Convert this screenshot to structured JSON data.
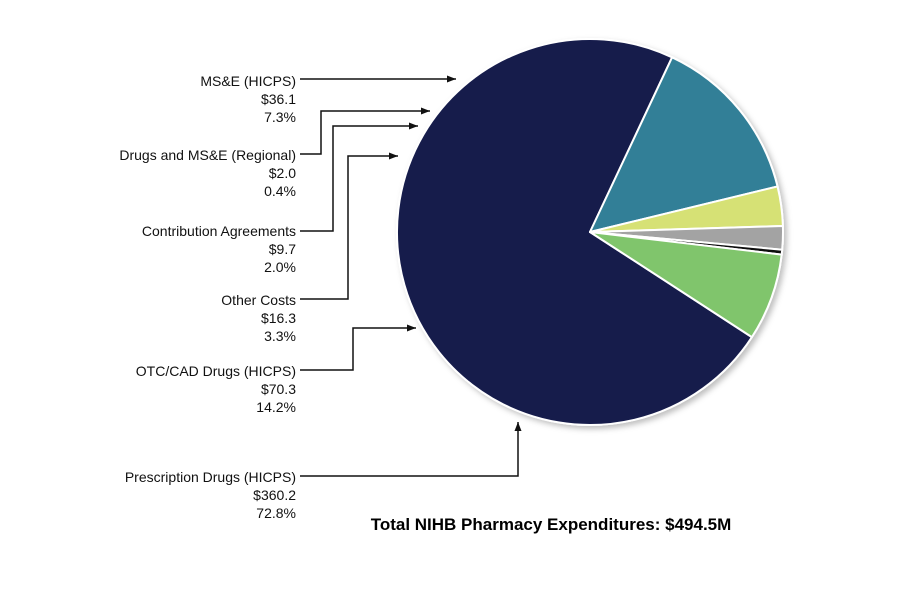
{
  "chart_data": {
    "type": "pie",
    "total_label": "Total NIHB Pharmacy Expenditures: $494.5M",
    "slices": [
      {
        "name": "Prescription Drugs (HICPS)",
        "value_label": "$360.2",
        "percent_label": "72.8%",
        "value": 360.2,
        "percent": 72.8,
        "color": "#141a4c"
      },
      {
        "name": "OTC/CAD Drugs (HICPS)",
        "value_label": "$70.3",
        "percent_label": "14.2%",
        "value": 70.3,
        "percent": 14.2,
        "color": "#327f97"
      },
      {
        "name": "Other Costs",
        "value_label": "$16.3",
        "percent_label": "3.3%",
        "value": 16.3,
        "percent": 3.3,
        "color": "#d6e174"
      },
      {
        "name": "Contribution Agreements",
        "value_label": "$9.7",
        "percent_label": "2.0%",
        "value": 9.7,
        "percent": 2.0,
        "color": "#a3a3a3"
      },
      {
        "name": "Drugs and MS&E (Regional)",
        "value_label": "$2.0",
        "percent_label": "0.4%",
        "value": 2.0,
        "percent": 0.4,
        "color": "#111111"
      },
      {
        "name": "MS&E (HICPS)",
        "value_label": "$36.1",
        "percent_label": "7.3%",
        "value": 36.1,
        "percent": 7.3,
        "color": "#80c56c"
      }
    ]
  }
}
